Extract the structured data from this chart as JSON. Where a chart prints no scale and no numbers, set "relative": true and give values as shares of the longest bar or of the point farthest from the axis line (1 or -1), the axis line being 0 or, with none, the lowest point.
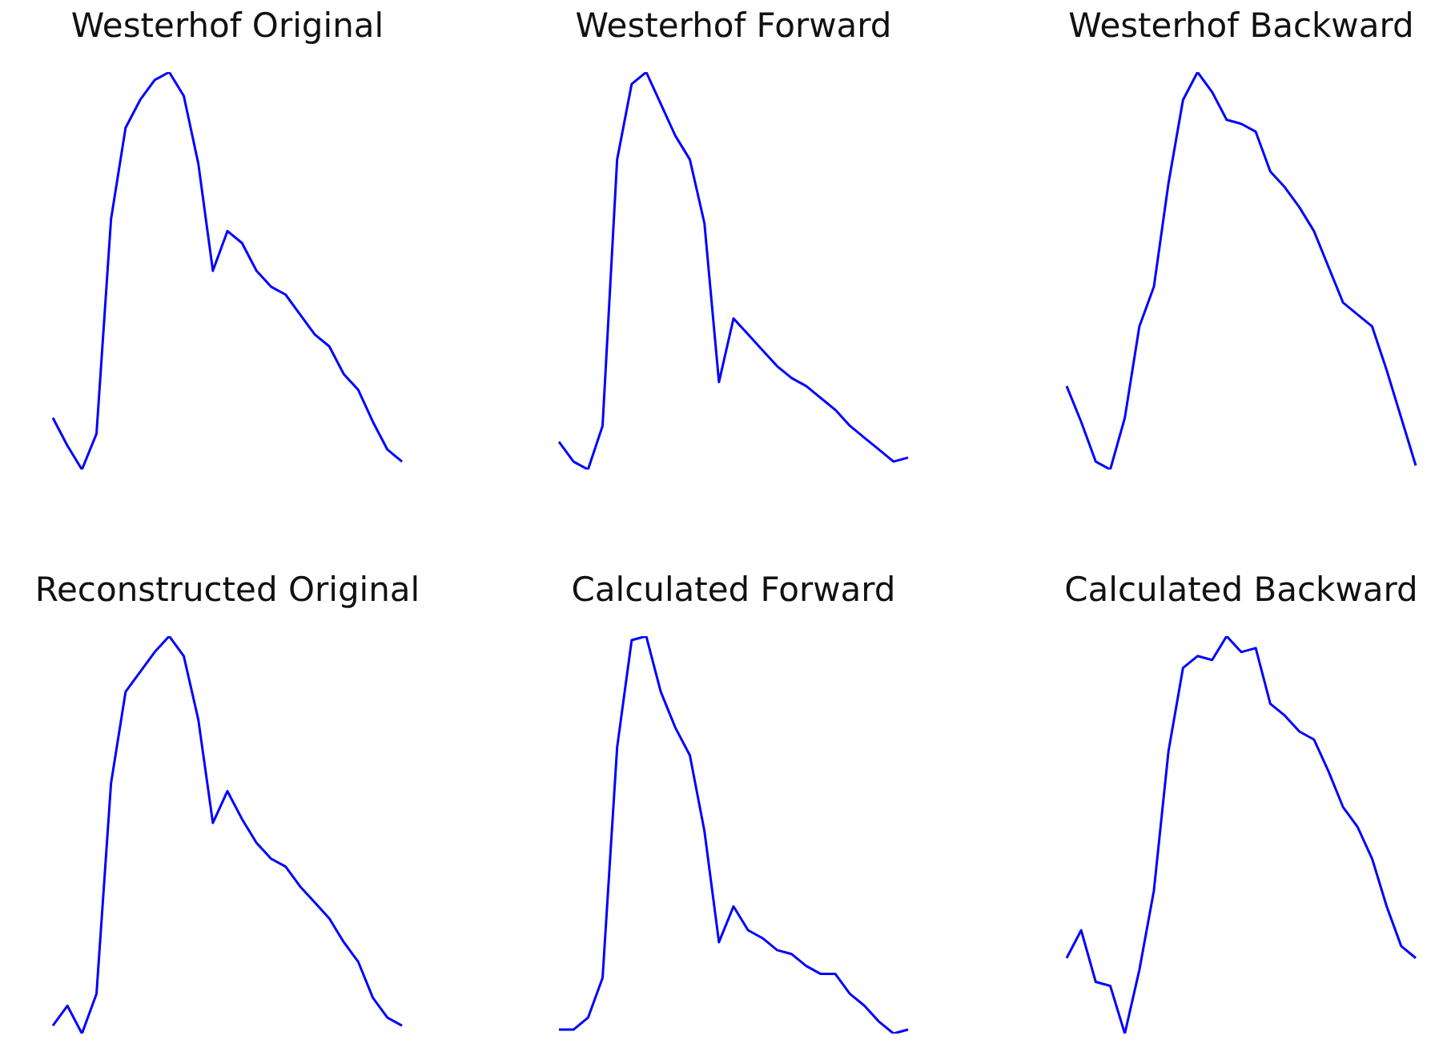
{
  "chart_data": [
    {
      "type": "line",
      "title": "Westerhof Original",
      "relative": true,
      "color": "#0000ff",
      "categories": [
        null,
        null,
        null,
        null,
        null,
        null,
        null,
        null,
        null,
        null,
        null,
        null,
        null,
        null,
        null,
        null,
        null,
        null,
        null,
        null,
        null,
        null,
        null,
        null,
        null
      ],
      "values": [
        0.13,
        0.06,
        0,
        0.09,
        0.63,
        0.86,
        0.93,
        0.98,
        1,
        0.94,
        0.77,
        0.5,
        0.6,
        0.57,
        0.5,
        0.46,
        0.44,
        0.39,
        0.34,
        0.31,
        0.24,
        0.2,
        0.12,
        0.05,
        0.02
      ]
    },
    {
      "type": "line",
      "title": "Westerhof Forward",
      "relative": true,
      "color": "#0000ff",
      "categories": [
        null,
        null,
        null,
        null,
        null,
        null,
        null,
        null,
        null,
        null,
        null,
        null,
        null,
        null,
        null,
        null,
        null,
        null,
        null,
        null,
        null,
        null,
        null,
        null,
        null
      ],
      "values": [
        0.07,
        0.02,
        0,
        0.11,
        0.78,
        0.97,
        1,
        0.92,
        0.84,
        0.78,
        0.62,
        0.22,
        0.38,
        0.34,
        0.3,
        0.26,
        0.23,
        0.21,
        0.18,
        0.15,
        0.11,
        0.08,
        0.05,
        0.02,
        0.03
      ]
    },
    {
      "type": "line",
      "title": "Westerhof Backward",
      "relative": true,
      "color": "#0000ff",
      "categories": [
        null,
        null,
        null,
        null,
        null,
        null,
        null,
        null,
        null,
        null,
        null,
        null,
        null,
        null,
        null,
        null,
        null,
        null,
        null,
        null,
        null,
        null,
        null,
        null,
        null
      ],
      "values": [
        0.21,
        0.12,
        0.02,
        0,
        0.13,
        0.36,
        0.46,
        0.72,
        0.93,
        1,
        0.95,
        0.88,
        0.87,
        0.85,
        0.75,
        0.71,
        0.66,
        0.6,
        0.51,
        0.42,
        0.39,
        0.36,
        0.25,
        0.13,
        0.01
      ]
    },
    {
      "type": "line",
      "title": "Reconstructed Original",
      "relative": true,
      "color": "#0000ff",
      "categories": [
        null,
        null,
        null,
        null,
        null,
        null,
        null,
        null,
        null,
        null,
        null,
        null,
        null,
        null,
        null,
        null,
        null,
        null,
        null,
        null,
        null,
        null,
        null,
        null,
        null
      ],
      "values": [
        0.02,
        0.07,
        0,
        0.1,
        0.63,
        0.86,
        0.91,
        0.96,
        1,
        0.95,
        0.79,
        0.53,
        0.61,
        0.54,
        0.48,
        0.44,
        0.42,
        0.37,
        0.33,
        0.29,
        0.23,
        0.18,
        0.09,
        0.04,
        0.02
      ]
    },
    {
      "type": "line",
      "title": "Calculated Forward",
      "relative": true,
      "color": "#0000ff",
      "categories": [
        null,
        null,
        null,
        null,
        null,
        null,
        null,
        null,
        null,
        null,
        null,
        null,
        null,
        null,
        null,
        null,
        null,
        null,
        null,
        null,
        null,
        null,
        null,
        null,
        null
      ],
      "values": [
        0.01,
        0.01,
        0.04,
        0.14,
        0.72,
        0.99,
        1,
        0.86,
        0.77,
        0.7,
        0.51,
        0.23,
        0.32,
        0.26,
        0.24,
        0.21,
        0.2,
        0.17,
        0.15,
        0.15,
        0.1,
        0.07,
        0.03,
        0,
        0.01
      ]
    },
    {
      "type": "line",
      "title": "Calculated Backward",
      "relative": true,
      "color": "#0000ff",
      "categories": [
        null,
        null,
        null,
        null,
        null,
        null,
        null,
        null,
        null,
        null,
        null,
        null,
        null,
        null,
        null,
        null,
        null,
        null,
        null,
        null,
        null,
        null,
        null,
        null,
        null
      ],
      "values": [
        0.19,
        0.26,
        0.13,
        0.12,
        0,
        0.16,
        0.36,
        0.71,
        0.92,
        0.95,
        0.94,
        1,
        0.96,
        0.97,
        0.83,
        0.8,
        0.76,
        0.74,
        0.66,
        0.57,
        0.52,
        0.44,
        0.32,
        0.22,
        0.19
      ]
    }
  ]
}
